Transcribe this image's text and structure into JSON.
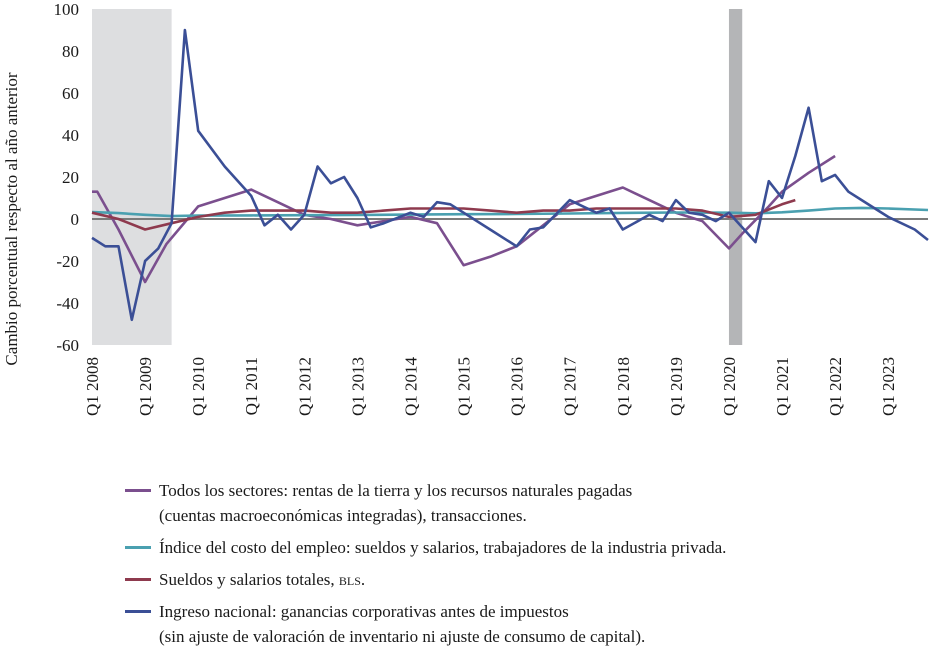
{
  "chart_data": {
    "type": "line",
    "ylabel": "Cambio porcentual respecto al año anterior",
    "xlabel": "",
    "ylim": [
      -60,
      100
    ],
    "yticks": [
      100,
      80,
      60,
      40,
      20,
      0,
      -20,
      -40,
      -60
    ],
    "xlim": [
      2008.0,
      2023.75
    ],
    "xticks": [
      "Q1 2008",
      "Q1 2009",
      "Q1 2010",
      "Q1 2011",
      "Q1 2012",
      "Q1 2013",
      "Q1 2014",
      "Q1 2015",
      "Q1 2016",
      "Q1 2017",
      "Q1 2018",
      "Q1 2019",
      "Q1 2020",
      "Q1 2021",
      "Q1 2022",
      "Q1 2023"
    ],
    "recessions": [
      [
        2008.0,
        2009.5
      ],
      [
        2020.0,
        2020.25
      ]
    ],
    "zero_line": true,
    "grid": false,
    "legend_position": "bottom",
    "series": [
      {
        "name": "Todos los sectores: rentas de la tierra y los recursos naturales pagadas (cuentas macroeconómicas integradas), transacciones.",
        "color": "#7b4f8e",
        "points": [
          [
            2008.0,
            13
          ],
          [
            2008.1,
            13
          ],
          [
            2008.5,
            -5
          ],
          [
            2009.0,
            -30
          ],
          [
            2009.4,
            -12
          ],
          [
            2010.0,
            6
          ],
          [
            2010.5,
            10
          ],
          [
            2011.0,
            14
          ],
          [
            2011.5,
            8
          ],
          [
            2012.0,
            2
          ],
          [
            2012.5,
            0
          ],
          [
            2013.0,
            -3
          ],
          [
            2013.5,
            -1
          ],
          [
            2014.0,
            1
          ],
          [
            2014.5,
            -2
          ],
          [
            2015.0,
            -22
          ],
          [
            2015.5,
            -18
          ],
          [
            2016.0,
            -13
          ],
          [
            2016.5,
            -3
          ],
          [
            2017.0,
            7
          ],
          [
            2017.5,
            11
          ],
          [
            2018.0,
            15
          ],
          [
            2018.5,
            9
          ],
          [
            2019.0,
            3
          ],
          [
            2019.5,
            -1
          ],
          [
            2020.0,
            -14
          ],
          [
            2020.25,
            -7
          ],
          [
            2020.75,
            6
          ],
          [
            2021.0,
            13
          ],
          [
            2021.5,
            22
          ],
          [
            2022.0,
            30
          ]
        ]
      },
      {
        "name": "Índice del costo del empleo: sueldos y salarios, trabajadores de la industria privada.",
        "color": "#4aa0b0",
        "points": [
          [
            2008.0,
            3.3
          ],
          [
            2008.5,
            2.8
          ],
          [
            2009.0,
            2.0
          ],
          [
            2009.5,
            1.4
          ],
          [
            2010.0,
            1.6
          ],
          [
            2011.0,
            1.7
          ],
          [
            2012.0,
            1.8
          ],
          [
            2013.0,
            1.9
          ],
          [
            2014.0,
            2.1
          ],
          [
            2015.0,
            2.3
          ],
          [
            2016.0,
            2.4
          ],
          [
            2017.0,
            2.6
          ],
          [
            2018.0,
            2.9
          ],
          [
            2019.0,
            3.1
          ],
          [
            2020.0,
            3.0
          ],
          [
            2020.5,
            2.7
          ],
          [
            2021.0,
            3.2
          ],
          [
            2021.5,
            4.0
          ],
          [
            2022.0,
            5.0
          ],
          [
            2022.5,
            5.3
          ],
          [
            2023.0,
            5.0
          ],
          [
            2023.75,
            4.3
          ]
        ]
      },
      {
        "name": "Sueldos y salarios totales, BLS.",
        "color": "#8e3a4e",
        "points": [
          [
            2008.0,
            3
          ],
          [
            2008.5,
            0
          ],
          [
            2009.0,
            -5
          ],
          [
            2009.5,
            -2
          ],
          [
            2010.0,
            1
          ],
          [
            2010.5,
            3
          ],
          [
            2011.0,
            4
          ],
          [
            2011.5,
            4
          ],
          [
            2012.0,
            4
          ],
          [
            2012.5,
            3
          ],
          [
            2013.0,
            3
          ],
          [
            2013.5,
            4
          ],
          [
            2014.0,
            5
          ],
          [
            2014.5,
            5
          ],
          [
            2015.0,
            5
          ],
          [
            2015.5,
            4
          ],
          [
            2016.0,
            3
          ],
          [
            2016.5,
            4
          ],
          [
            2017.0,
            4
          ],
          [
            2017.5,
            5
          ],
          [
            2018.0,
            5
          ],
          [
            2018.5,
            5
          ],
          [
            2019.0,
            5
          ],
          [
            2019.5,
            4
          ],
          [
            2020.0,
            1
          ],
          [
            2020.5,
            2
          ],
          [
            2021.0,
            7
          ],
          [
            2021.25,
            9
          ]
        ]
      },
      {
        "name": "Ingreso nacional: ganancias corporativas antes de impuestos (sin ajuste de valoración de inventario ni ajuste de consumo de capital).",
        "color": "#3b4f96",
        "points": [
          [
            2008.0,
            -9
          ],
          [
            2008.25,
            -13
          ],
          [
            2008.5,
            -13
          ],
          [
            2008.75,
            -48
          ],
          [
            2009.0,
            -20
          ],
          [
            2009.25,
            -14
          ],
          [
            2009.5,
            -2
          ],
          [
            2009.75,
            90
          ],
          [
            2010.0,
            42
          ],
          [
            2010.5,
            25
          ],
          [
            2011.0,
            11
          ],
          [
            2011.25,
            -3
          ],
          [
            2011.5,
            2
          ],
          [
            2011.75,
            -5
          ],
          [
            2012.0,
            2
          ],
          [
            2012.25,
            25
          ],
          [
            2012.5,
            17
          ],
          [
            2012.75,
            20
          ],
          [
            2013.0,
            10
          ],
          [
            2013.25,
            -4
          ],
          [
            2013.5,
            -2
          ],
          [
            2014.0,
            3
          ],
          [
            2014.25,
            1
          ],
          [
            2014.5,
            8
          ],
          [
            2014.75,
            7
          ],
          [
            2015.0,
            3
          ],
          [
            2015.5,
            -5
          ],
          [
            2016.0,
            -13
          ],
          [
            2016.25,
            -5
          ],
          [
            2016.5,
            -4
          ],
          [
            2017.0,
            9
          ],
          [
            2017.25,
            6
          ],
          [
            2017.5,
            3
          ],
          [
            2017.75,
            5
          ],
          [
            2018.0,
            -5
          ],
          [
            2018.5,
            2
          ],
          [
            2018.75,
            -1
          ],
          [
            2019.0,
            9
          ],
          [
            2019.25,
            3
          ],
          [
            2019.5,
            2
          ],
          [
            2019.75,
            -1
          ],
          [
            2020.0,
            3
          ],
          [
            2020.25,
            -4
          ],
          [
            2020.5,
            -11
          ],
          [
            2020.75,
            18
          ],
          [
            2021.0,
            10
          ],
          [
            2021.25,
            30
          ],
          [
            2021.5,
            53
          ],
          [
            2021.75,
            18
          ],
          [
            2022.0,
            21
          ],
          [
            2022.25,
            13
          ],
          [
            2022.5,
            9
          ],
          [
            2022.75,
            5
          ],
          [
            2023.0,
            1
          ],
          [
            2023.5,
            -5
          ],
          [
            2023.75,
            -10
          ]
        ]
      }
    ]
  }
}
